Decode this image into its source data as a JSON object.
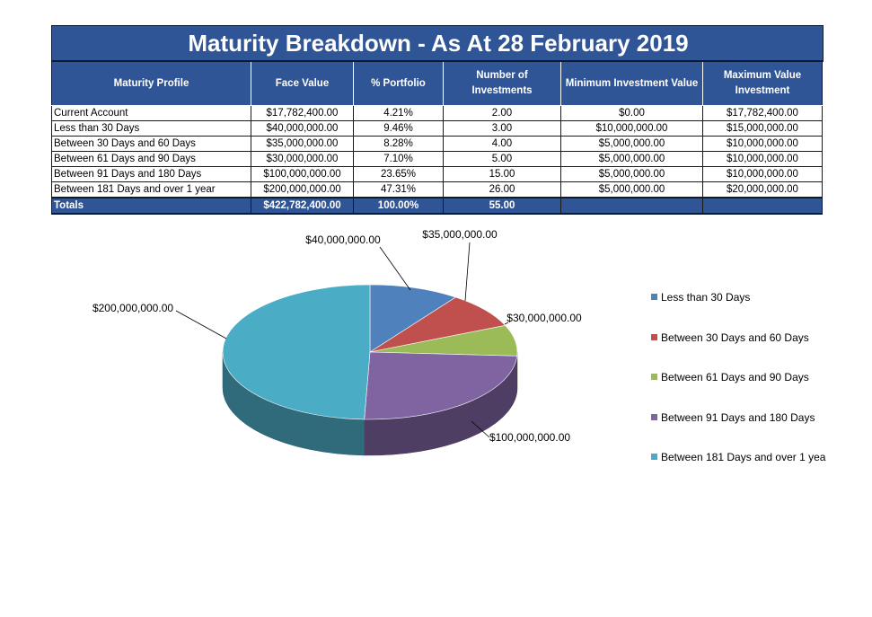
{
  "table": {
    "title": "Maturity Breakdown - As At 28 February 2019",
    "headers": [
      "Maturity Profile",
      "Face Value",
      "% Portfolio",
      "Number of Investments",
      "Minimum Investment Value",
      "Maximum Value Investment"
    ],
    "rows": [
      [
        "Current Account",
        "$17,782,400.00",
        "4.21%",
        "2.00",
        "$0.00",
        "$17,782,400.00"
      ],
      [
        "Less than 30 Days",
        "$40,000,000.00",
        "9.46%",
        "3.00",
        "$10,000,000.00",
        "$15,000,000.00"
      ],
      [
        "Between 30 Days and 60 Days",
        "$35,000,000.00",
        "8.28%",
        "4.00",
        "$5,000,000.00",
        "$10,000,000.00"
      ],
      [
        "Between 61 Days and 90 Days",
        "$30,000,000.00",
        "7.10%",
        "5.00",
        "$5,000,000.00",
        "$10,000,000.00"
      ],
      [
        "Between 91 Days and 180 Days",
        "$100,000,000.00",
        "23.65%",
        "15.00",
        "$5,000,000.00",
        "$10,000,000.00"
      ],
      [
        "Between 181 Days and over 1 year",
        "$200,000,000.00",
        "47.31%",
        "26.00",
        "$5,000,000.00",
        "$20,000,000.00"
      ]
    ],
    "totals": [
      "Totals",
      "$422,782,400.00",
      "100.00%",
      "55.00",
      "",
      ""
    ]
  },
  "chart_data": {
    "type": "pie",
    "style": "3d",
    "categories": [
      "Less than 30 Days",
      "Between 30 Days and 60 Days",
      "Between 61 Days and 90 Days",
      "Between 91 Days and 180 Days",
      "Between 181 Days and over 1 year"
    ],
    "values": [
      40000000,
      35000000,
      30000000,
      100000000,
      200000000
    ],
    "data_labels": [
      "$40,000,000.00",
      "$35,000,000.00",
      "$30,000,000.00",
      "$100,000,000.00",
      "$200,000,000.00"
    ],
    "legend_labels": [
      "Less than 30 Days",
      "Between 30 Days and 60 Days",
      "Between 61 Days and 90 Days",
      "Between 91 Days and 180 Days",
      "Between 181 Days and over 1 yea"
    ],
    "colors": [
      "#4f81bd",
      "#c0504d",
      "#9bbb59",
      "#8064a2",
      "#4bacc6"
    ],
    "legend_position": "right"
  }
}
